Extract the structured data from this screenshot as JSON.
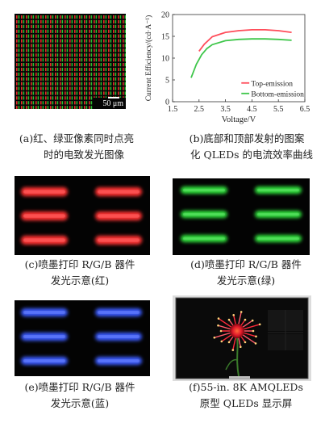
{
  "figure": {
    "a": {
      "label": "(a)",
      "line1": "红、绿亚像素同时点亮",
      "line2": "时的电致发光图像",
      "scale_bar": "50 μm"
    },
    "b": {
      "label": "(b)",
      "line1": "底部和顶部发射的图案",
      "line2": "化 QLEDs 的电流效率曲线"
    },
    "c": {
      "label": "(c)",
      "line1": "喷墨打印 R/G/B 器件",
      "line2": "发光示意(红)"
    },
    "d": {
      "label": "(d)",
      "line1": "喷墨打印 R/G/B 器件",
      "line2": "发光示意(绿)"
    },
    "e": {
      "label": "(e)",
      "line1": "喷墨打印 R/G/B 器件",
      "line2": "发光示意(蓝)"
    },
    "f": {
      "label": "(f)",
      "line1": "55-in. 8K AMQLEDs",
      "line2": "原型 QLEDs 显示屏"
    }
  },
  "colors": {
    "red_emission": "#ff3030",
    "green_emission": "#2ee03a",
    "blue_emission": "#3a5cff",
    "top_curve": "#ff4d5a",
    "bottom_curve": "#3ec64a"
  },
  "chart_data": {
    "type": "line",
    "xlabel": "Voltage/V",
    "ylabel": "Current Efficiency/(cd·A⁻¹)",
    "xlim": [
      1.5,
      6.5
    ],
    "ylim": [
      0,
      20
    ],
    "xticks": [
      1.5,
      2.5,
      3.5,
      4.5,
      5.5,
      6.5
    ],
    "yticks": [
      0,
      5,
      10,
      15,
      20
    ],
    "legend_position": "bottom-right",
    "series": [
      {
        "name": "Top-emission",
        "color": "#ff4d5a",
        "x": [
          2.5,
          2.7,
          3.0,
          3.5,
          4.0,
          4.5,
          5.0,
          5.5,
          6.0
        ],
        "y": [
          11.6,
          13.2,
          14.9,
          15.9,
          16.3,
          16.5,
          16.5,
          16.3,
          15.9
        ]
      },
      {
        "name": "Bottom-emission",
        "color": "#3ec64a",
        "x": [
          2.2,
          2.4,
          2.6,
          2.8,
          3.0,
          3.5,
          4.0,
          4.5,
          5.0,
          5.5,
          6.0
        ],
        "y": [
          5.5,
          8.6,
          10.8,
          12.2,
          13.1,
          14.0,
          14.3,
          14.4,
          14.4,
          14.3,
          14.1
        ]
      }
    ]
  }
}
